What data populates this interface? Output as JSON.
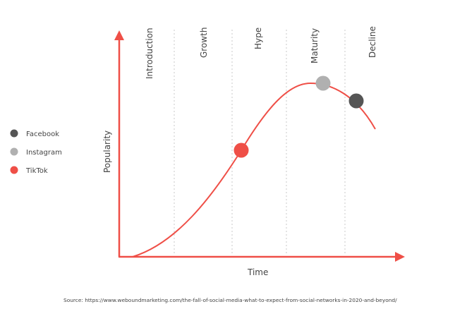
{
  "colors": {
    "accent": "#ef4f47",
    "facebook": "#555555",
    "instagram": "#b0b0b0",
    "tiktok": "#ef4f47",
    "grid": "#c8c8c8"
  },
  "stages": [
    "Introduction",
    "Growth",
    "Hype",
    "Maturity",
    "Decline"
  ],
  "axes": {
    "y_label": "Popularity",
    "x_label": "Time"
  },
  "legend": [
    {
      "label": "Facebook",
      "color": "#555555"
    },
    {
      "label": "Instagram",
      "color": "#b0b0b0"
    },
    {
      "label": "TikTok",
      "color": "#ef4f47"
    }
  ],
  "source": "Source: https://www.weboundmarketing.com/the-fall-of-social-media-what-to-expect-from-social-networks-in-2020-and-beyond/"
}
